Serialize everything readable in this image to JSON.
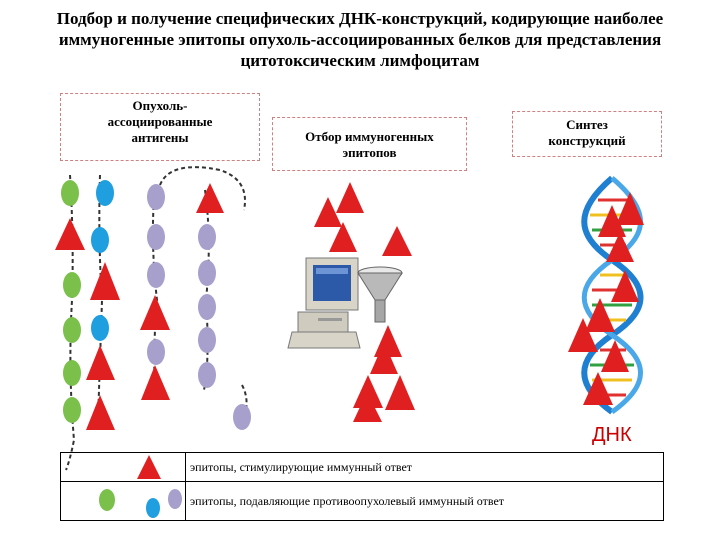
{
  "title": "Подбор и получение специфических ДНК-конструкций, кодирующие наиболее иммуногенные эпитопы опухоль-ассоциированных белков для представления цитотоксическим лимфоцитам",
  "boxes": {
    "antigens": [
      "Опухоль-",
      "ассоциированные",
      "антигены"
    ],
    "selection": [
      "Отбор иммуногенных",
      "эпитопов"
    ],
    "synthesis": [
      "Синтез",
      "конструкций"
    ]
  },
  "dna_label": "ДНК",
  "legend": {
    "stimulating": "эпитопы, стимулирующие иммунный ответ",
    "suppressing": "эпитопы, подавляющие противоопухолевый иммунный ответ"
  },
  "colors": {
    "epitope_red": "#e02020",
    "green": "#7cc04c",
    "blue": "#1f9fe0",
    "lavender": "#a8a0cc",
    "dna_red": "#cc0000"
  },
  "icons": [
    "computer-icon",
    "funnel-icon",
    "dna-helix-icon"
  ]
}
